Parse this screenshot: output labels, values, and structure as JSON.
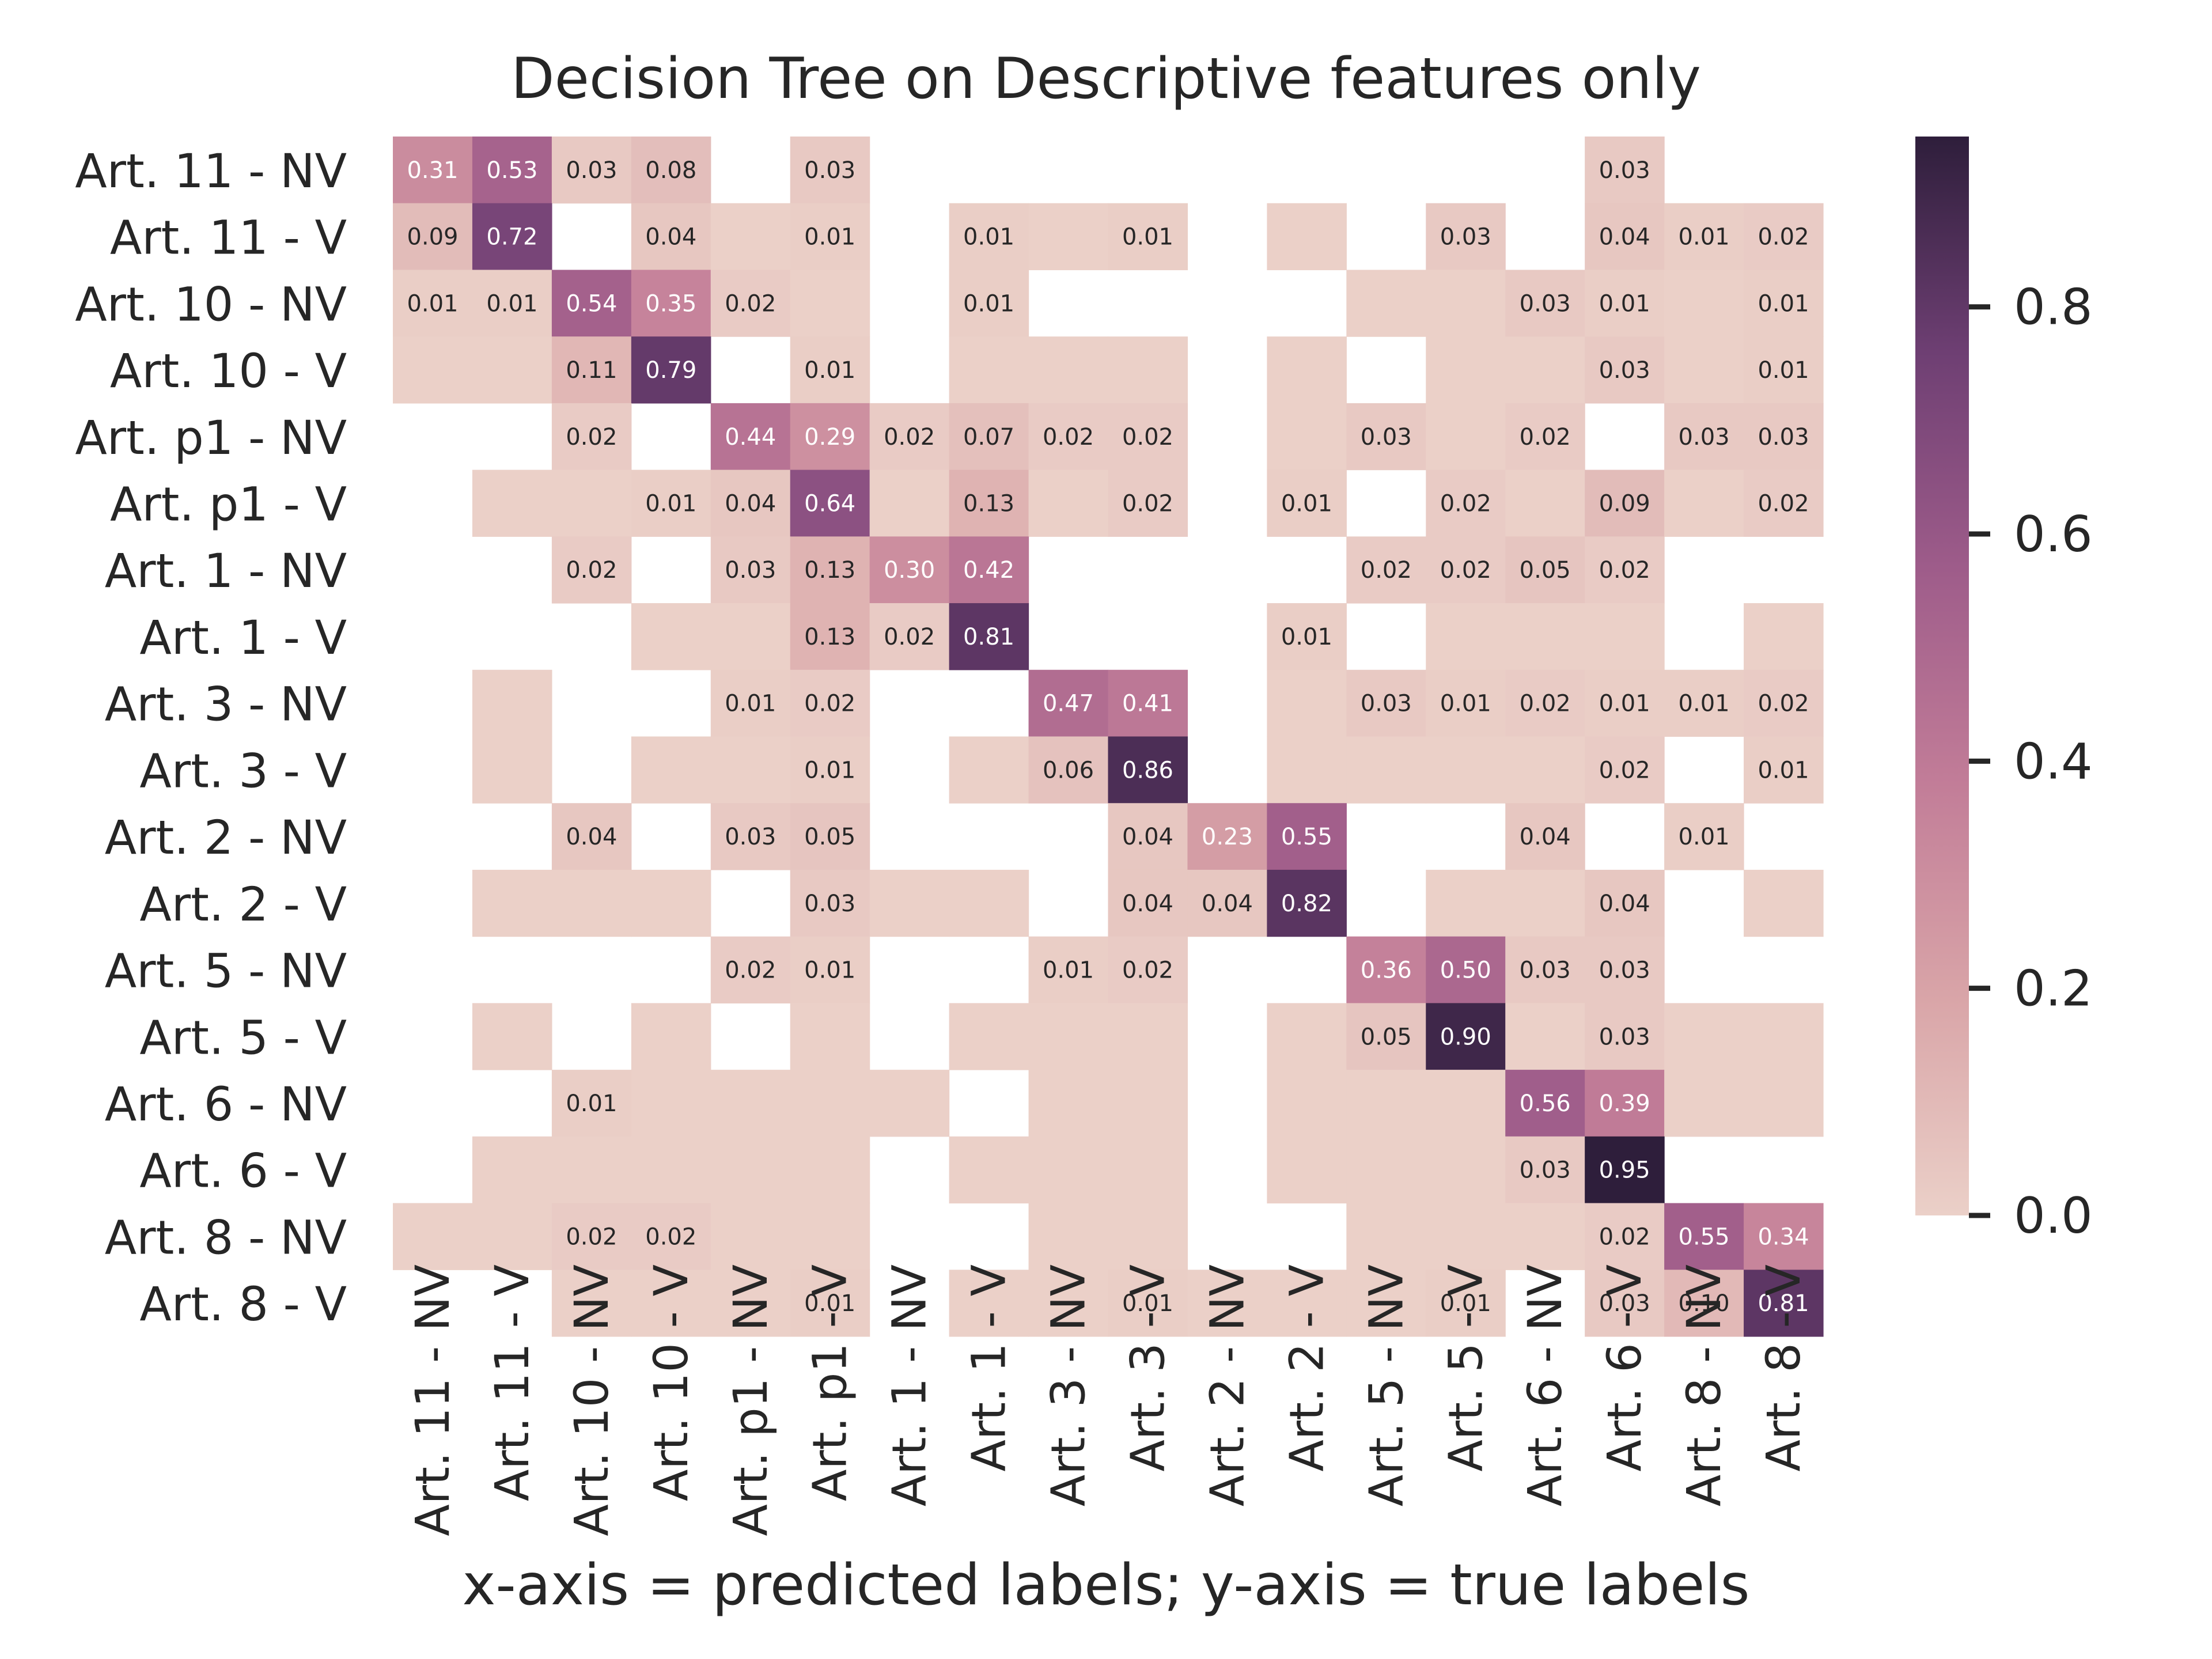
{
  "chart_data": {
    "type": "heatmap",
    "title": "Decision Tree on Descriptive features only",
    "xlabel": "x-axis = predicted labels; y-axis = true labels",
    "ylabel": "",
    "labels": [
      "Art. 11 - NV",
      "Art. 11 - V",
      "Art. 10 - NV",
      "Art. 10 - V",
      "Art. p1 - NV",
      "Art. p1 - V",
      "Art. 1 - NV",
      "Art. 1 - V",
      "Art. 3 - NV",
      "Art. 3 - V",
      "Art. 2 - NV",
      "Art. 2 - V",
      "Art. 5 - NV",
      "Art. 5 - V",
      "Art. 6 - NV",
      "Art. 6 - V",
      "Art. 8 - NV",
      "Art. 8 - V"
    ],
    "colorbar": {
      "range": [
        0,
        0.95
      ],
      "ticks": [
        0.0,
        0.2,
        0.4,
        0.6,
        0.8
      ],
      "tick_labels": [
        "0.0",
        "0.2",
        "0.4",
        "0.6",
        "0.8"
      ],
      "colors": [
        "#ebd0c8",
        "#d9a5a8",
        "#c27d98",
        "#9e5c8a",
        "#6e3f73",
        "#2e1e3b"
      ]
    },
    "matrix": [
      [
        0.31,
        0.53,
        0.03,
        0.08,
        null,
        0.03,
        null,
        null,
        null,
        null,
        null,
        null,
        null,
        null,
        null,
        0.03,
        null,
        null
      ],
      [
        0.09,
        0.72,
        null,
        0.04,
        0,
        0.01,
        null,
        0.01,
        0,
        0.01,
        null,
        0,
        null,
        0.03,
        null,
        0.04,
        0.01,
        0.02
      ],
      [
        0.01,
        0.01,
        0.54,
        0.35,
        0.02,
        0,
        null,
        0.01,
        null,
        null,
        null,
        null,
        0,
        0,
        0.03,
        0.01,
        0,
        0.01
      ],
      [
        0,
        0,
        0.11,
        0.79,
        null,
        0.01,
        null,
        0,
        0,
        0,
        null,
        0,
        null,
        0,
        0,
        0.03,
        0,
        0.01
      ],
      [
        null,
        null,
        0.02,
        null,
        0.44,
        0.29,
        0.02,
        0.07,
        0.02,
        0.02,
        null,
        0,
        0.03,
        0,
        0.02,
        null,
        0.03,
        0.03
      ],
      [
        null,
        0,
        0,
        0.01,
        0.04,
        0.64,
        0,
        0.13,
        0,
        0.02,
        null,
        0.01,
        null,
        0.02,
        0,
        0.09,
        0,
        0.02
      ],
      [
        null,
        null,
        0.02,
        null,
        0.03,
        0.13,
        0.3,
        0.42,
        null,
        null,
        null,
        null,
        0.02,
        0.02,
        0.05,
        0.02,
        null,
        null
      ],
      [
        null,
        null,
        null,
        0,
        0,
        0.13,
        0.02,
        0.81,
        null,
        null,
        null,
        0.01,
        null,
        0,
        0,
        0,
        null,
        0
      ],
      [
        null,
        0,
        null,
        null,
        0.01,
        0.02,
        null,
        null,
        0.47,
        0.41,
        null,
        0,
        0.03,
        0.01,
        0.02,
        0.01,
        0.01,
        0.02
      ],
      [
        null,
        0,
        null,
        0,
        0,
        0.01,
        null,
        0,
        0.06,
        0.86,
        null,
        0,
        0,
        0,
        0,
        0.02,
        null,
        0.01
      ],
      [
        null,
        null,
        0.04,
        null,
        0.03,
        0.05,
        null,
        null,
        null,
        0.04,
        0.23,
        0.55,
        null,
        null,
        0.04,
        null,
        0.01,
        null
      ],
      [
        null,
        0,
        0,
        0,
        null,
        0.03,
        0,
        0,
        null,
        0.04,
        0.04,
        0.82,
        null,
        0,
        0,
        0.04,
        null,
        0
      ],
      [
        null,
        null,
        null,
        null,
        0.02,
        0.01,
        null,
        null,
        0.01,
        0.02,
        null,
        null,
        0.36,
        0.5,
        0.03,
        0.03,
        null,
        null
      ],
      [
        null,
        0,
        null,
        0,
        null,
        0,
        null,
        0,
        0,
        0,
        null,
        0,
        0.05,
        0.9,
        0,
        0.03,
        0,
        0
      ],
      [
        null,
        null,
        0.01,
        0,
        0,
        0,
        0,
        null,
        0,
        0,
        null,
        0,
        0,
        0,
        0.56,
        0.39,
        0,
        0
      ],
      [
        null,
        0,
        0,
        0,
        0,
        0,
        null,
        0,
        0,
        0,
        null,
        0,
        0,
        0,
        0.03,
        0.95,
        null,
        null
      ],
      [
        0,
        0,
        0.02,
        0.02,
        0,
        0,
        null,
        null,
        0,
        0,
        null,
        null,
        0,
        0,
        0,
        0.02,
        0.55,
        0.34
      ],
      [
        null,
        null,
        0,
        0,
        0,
        0.01,
        null,
        0,
        0,
        0.01,
        0,
        0,
        0,
        0.01,
        null,
        0.03,
        0.1,
        0.81
      ]
    ]
  }
}
